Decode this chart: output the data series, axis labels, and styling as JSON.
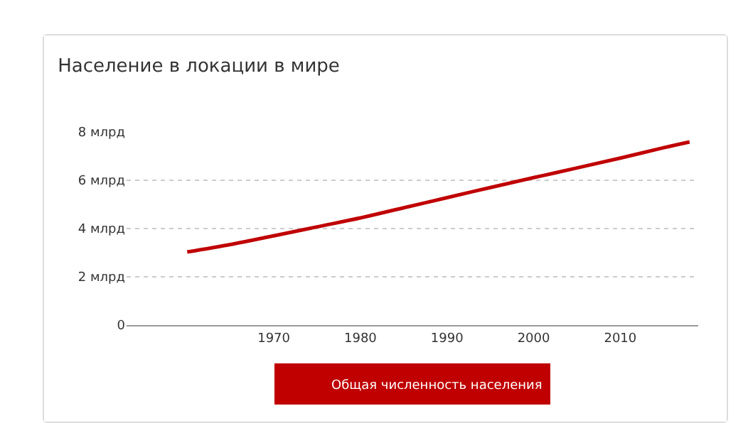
{
  "chart_data": {
    "type": "line",
    "title": "Население в локации в мире",
    "x": [
      1960,
      1965,
      1970,
      1975,
      1980,
      1985,
      1990,
      1995,
      2000,
      2005,
      2010,
      2015,
      2018
    ],
    "series": [
      {
        "name": "Общая численность населения",
        "color": "#c00000",
        "values": [
          3.03,
          3.34,
          3.7,
          4.07,
          4.44,
          4.86,
          5.28,
          5.7,
          6.11,
          6.51,
          6.92,
          7.35,
          7.59
        ]
      }
    ],
    "xlim": [
      1953,
      2019
    ],
    "xticks": [
      1970,
      1980,
      1990,
      2000,
      2010
    ],
    "ylim": [
      0,
      8
    ],
    "yticks": [
      {
        "value": 0,
        "label": "0"
      },
      {
        "value": 2,
        "label": "2 млрд"
      },
      {
        "value": 4,
        "label": "4 млрд"
      },
      {
        "value": 6,
        "label": "6 млрд"
      },
      {
        "value": 8,
        "label": "8 млрд"
      }
    ],
    "grid": "y",
    "legend": "bottom",
    "marker": "none",
    "line_style": "solid"
  }
}
